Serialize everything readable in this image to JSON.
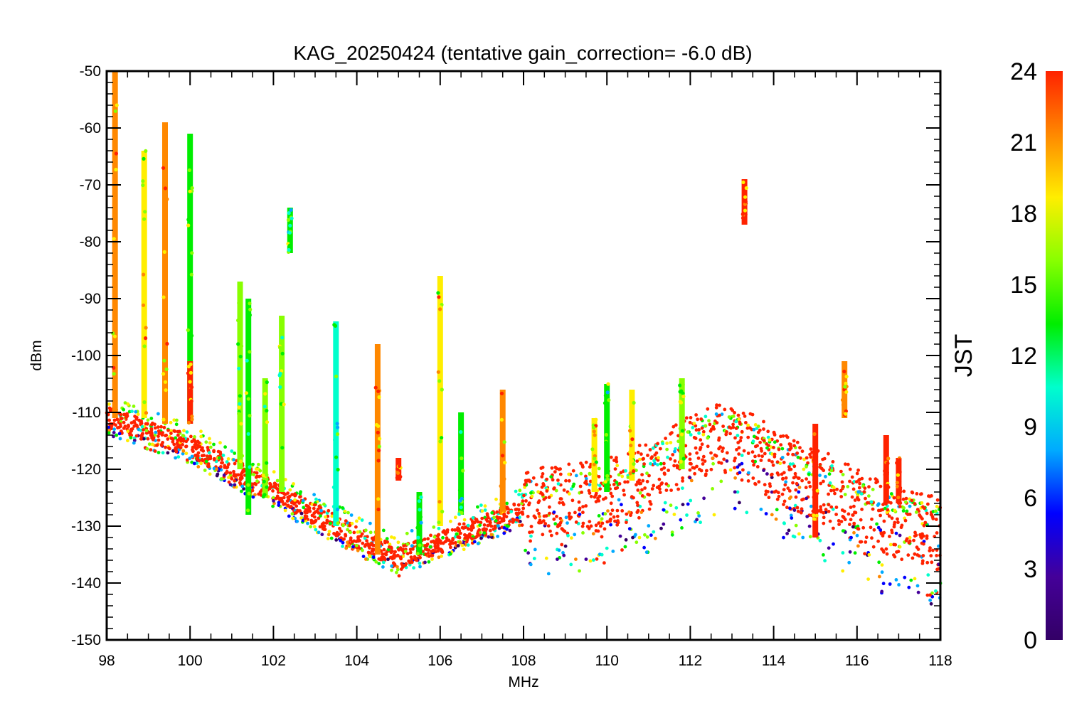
{
  "chart_data": {
    "type": "scatter",
    "title": "KAG_20250424 (tentative gain_correction= -6.0 dB)",
    "xlabel": "MHz",
    "ylabel": "dBm",
    "xlim": [
      98,
      118
    ],
    "ylim": [
      -150,
      -50
    ],
    "xticks": [
      "98",
      "100",
      "102",
      "104",
      "106",
      "108",
      "110",
      "112",
      "114",
      "116",
      "118"
    ],
    "yticks": [
      "-50",
      "-60",
      "-70",
      "-80",
      "-90",
      "-100",
      "-110",
      "-120",
      "-130",
      "-140",
      "-150"
    ],
    "grid": false,
    "colorbar": {
      "label": "JST",
      "range": [
        0,
        24
      ],
      "ticks": [
        "24",
        "21",
        "18",
        "15",
        "12",
        "9",
        "6",
        "3",
        "0"
      ],
      "colors": [
        "#ff2200",
        "#ff8800",
        "#ffee00",
        "#88ff00",
        "#00ee00",
        "#00ffcc",
        "#00aaff",
        "#0000ff",
        "#440099",
        "#330066"
      ]
    },
    "noise_floor": {
      "x": [
        98,
        100,
        102,
        104,
        104.8,
        105,
        105.2,
        106,
        107,
        108,
        109,
        110,
        111,
        112,
        112.8,
        113.5,
        114,
        115,
        116,
        117,
        118
      ],
      "y": [
        -112,
        -117,
        -125,
        -133,
        -136,
        -137,
        -136,
        -134,
        -131,
        -128,
        -127,
        -126,
        -123,
        -118,
        -116,
        -118,
        -121,
        -124,
        -128,
        -131,
        -133
      ]
    },
    "spread_region": {
      "x": [
        108,
        118
      ],
      "upper_dBm_excess": 8,
      "lower_dBm_deficit": 12
    },
    "signals": [
      {
        "freq": 98.2,
        "top": -50,
        "bottom": -111,
        "dominant_jst": 20
      },
      {
        "freq": 98.9,
        "top": -64,
        "bottom": -111,
        "dominant_jst": 18
      },
      {
        "freq": 99.4,
        "top": -59,
        "bottom": -112,
        "dominant_jst": 20
      },
      {
        "freq": 100.0,
        "top": -61,
        "bottom": -112,
        "dominant_jst": 14
      },
      {
        "freq": 100.0,
        "top": -101,
        "bottom": -112,
        "dominant_jst": 23
      },
      {
        "freq": 101.2,
        "top": -87,
        "bottom": -120,
        "dominant_jst": 15
      },
      {
        "freq": 101.4,
        "top": -90,
        "bottom": -128,
        "dominant_jst": 14
      },
      {
        "freq": 101.8,
        "top": -104,
        "bottom": -125,
        "dominant_jst": 16
      },
      {
        "freq": 102.2,
        "top": -93,
        "bottom": -124,
        "dominant_jst": 15
      },
      {
        "freq": 102.4,
        "top": -74,
        "bottom": -82,
        "dominant_jst": 14
      },
      {
        "freq": 103.5,
        "top": -94,
        "bottom": -130,
        "dominant_jst": 12
      },
      {
        "freq": 104.5,
        "top": -98,
        "bottom": -135,
        "dominant_jst": 22
      },
      {
        "freq": 105.0,
        "top": -118,
        "bottom": -122,
        "dominant_jst": 23
      },
      {
        "freq": 105.5,
        "top": -124,
        "bottom": -135,
        "dominant_jst": 13
      },
      {
        "freq": 106.0,
        "top": -86,
        "bottom": -130,
        "dominant_jst": 18
      },
      {
        "freq": 106.5,
        "top": -110,
        "bottom": -128,
        "dominant_jst": 13
      },
      {
        "freq": 107.5,
        "top": -106,
        "bottom": -128,
        "dominant_jst": 22
      },
      {
        "freq": 109.7,
        "top": -111,
        "bottom": -124,
        "dominant_jst": 18
      },
      {
        "freq": 110.0,
        "top": -105,
        "bottom": -124,
        "dominant_jst": 14
      },
      {
        "freq": 110.6,
        "top": -106,
        "bottom": -122,
        "dominant_jst": 19
      },
      {
        "freq": 111.8,
        "top": -104,
        "bottom": -120,
        "dominant_jst": 17
      },
      {
        "freq": 113.3,
        "top": -69,
        "bottom": -77,
        "dominant_jst": 23
      },
      {
        "freq": 115.0,
        "top": -112,
        "bottom": -132,
        "dominant_jst": 23
      },
      {
        "freq": 115.7,
        "top": -101,
        "bottom": -111,
        "dominant_jst": 20
      },
      {
        "freq": 116.7,
        "top": -114,
        "bottom": -126,
        "dominant_jst": 23
      },
      {
        "freq": 117.0,
        "top": -118,
        "bottom": -126,
        "dominant_jst": 23
      }
    ]
  }
}
